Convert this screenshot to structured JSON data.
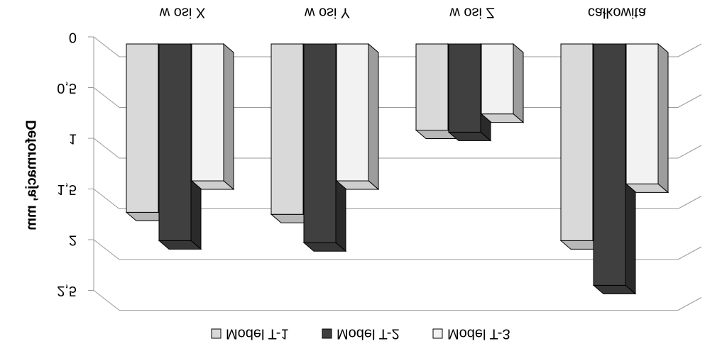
{
  "chart_data": {
    "type": "bar3d",
    "y_label": "Deformacja, mm",
    "categories": [
      "w osi X",
      "w osi Y",
      "w osi Z",
      "całkowita"
    ],
    "series": [
      {
        "name": "Model T-1",
        "color": "#d9d9d9",
        "values": [
          1.66,
          1.68,
          0.85,
          1.94
        ]
      },
      {
        "name": "Model T-2",
        "color": "#404040",
        "values": [
          1.94,
          1.96,
          0.87,
          2.38
        ]
      },
      {
        "name": "Model T-3",
        "color": "#f2f2f2",
        "values": [
          1.35,
          1.35,
          0.69,
          1.38
        ]
      }
    ],
    "ylim": [
      0,
      2.5
    ],
    "yticks": [
      0,
      {
        "value": 0.5,
        "label": "0,5"
      },
      1,
      {
        "value": 1.5,
        "label": "1,5"
      },
      2,
      {
        "value": 2.5,
        "label": "2,5"
      }
    ],
    "grid": true
  }
}
